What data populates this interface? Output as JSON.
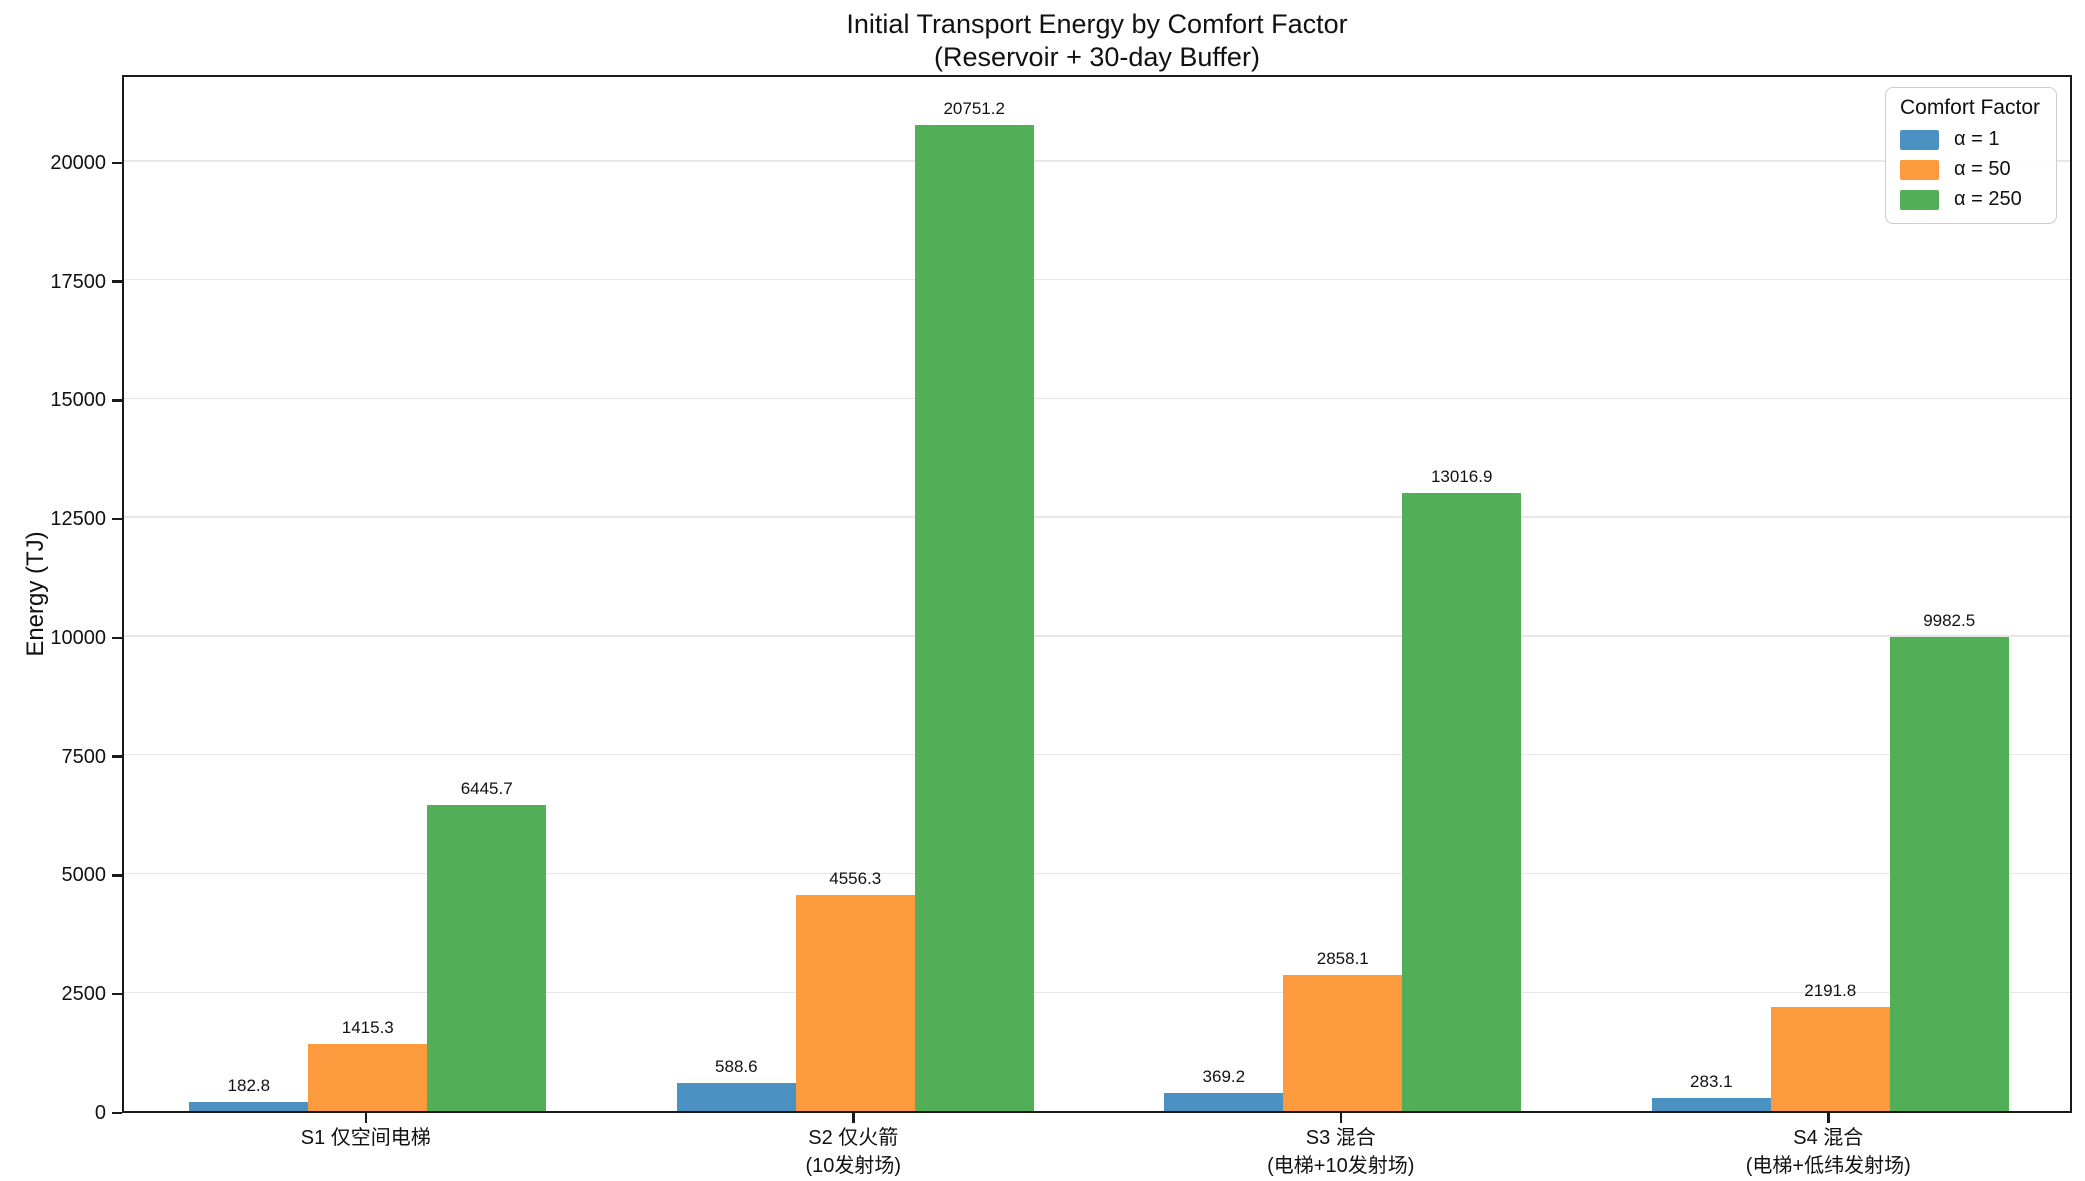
{
  "title": {
    "line1": "Initial Transport Energy by Comfort Factor",
    "line2": "(Reservoir + 30-day Buffer)"
  },
  "legend": {
    "title": "Comfort Factor"
  },
  "chart_data": {
    "type": "bar",
    "title": "Initial Transport Energy by Comfort Factor (Reservoir + 30-day Buffer)",
    "xlabel": "",
    "ylabel": "Energy (TJ)",
    "ylim": [
      0,
      21850
    ],
    "yticks": [
      0,
      2500,
      5000,
      7500,
      10000,
      12500,
      15000,
      17500,
      20000
    ],
    "grid": true,
    "legend_position": "upper right",
    "legend_title": "Comfort Factor",
    "categories": [
      {
        "lines": [
          "S1 仅空间电梯"
        ]
      },
      {
        "lines": [
          "S2 仅火箭",
          "(10发射场)"
        ]
      },
      {
        "lines": [
          "S3 混合",
          "(电梯+10发射场)"
        ]
      },
      {
        "lines": [
          "S4 混合",
          "(电梯+低纬发射场)"
        ]
      }
    ],
    "series": [
      {
        "name": "α = 1",
        "color": "#4B92C3",
        "values": [
          182.8,
          588.6,
          369.2,
          283.1
        ]
      },
      {
        "name": "α = 50",
        "color": "#FD9A3D",
        "values": [
          1415.3,
          4556.3,
          2858.1,
          2191.8
        ]
      },
      {
        "name": "α = 250",
        "color": "#53AF57",
        "values": [
          6445.7,
          20751.2,
          13016.9,
          9982.5
        ]
      }
    ]
  }
}
